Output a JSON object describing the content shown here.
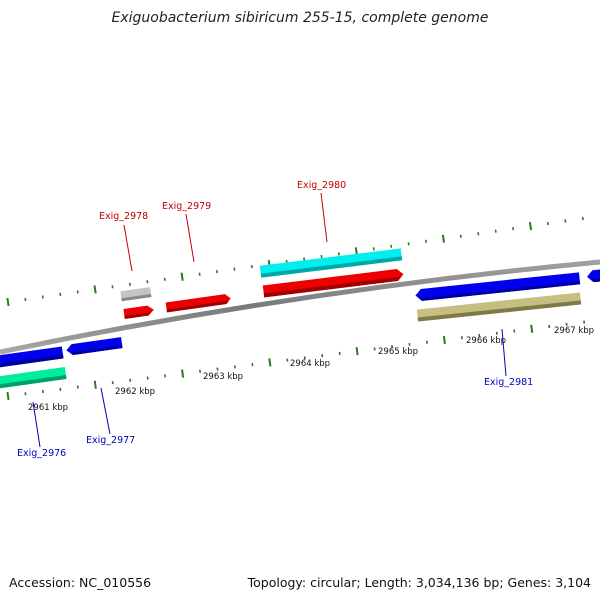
{
  "title": "Exiguobacterium sibiricum 255-15, complete genome",
  "footer": {
    "accession": "Accession: NC_010556",
    "topology": "Topology: circular; Length: 3,034,136 bp; Genes: 3,104"
  },
  "colors": {
    "backbone": "#888888",
    "tick": "#2a7a1f",
    "forward_label": "#c40000",
    "reverse_label": "#0000c0",
    "gene_red": "#ee0000",
    "gene_blue": "#0000ee",
    "gene_cyan": "#00eeee",
    "gene_gray": "#bbbbbb",
    "gene_tan": "#bdb76b",
    "gene_green": "#00ee99"
  },
  "kbp_labels": [
    "2961 kbp",
    "2962 kbp",
    "2963 kbp",
    "2964 kbp",
    "2965 kbp",
    "2966 kbp",
    "2967 kbp"
  ],
  "gene_labels": {
    "exig_2976": "Exig_2976",
    "exig_2977": "Exig_2977",
    "exig_2978": "Exig_2978",
    "exig_2979": "Exig_2979",
    "exig_2980": "Exig_2980",
    "exig_2981": "Exig_2981"
  }
}
